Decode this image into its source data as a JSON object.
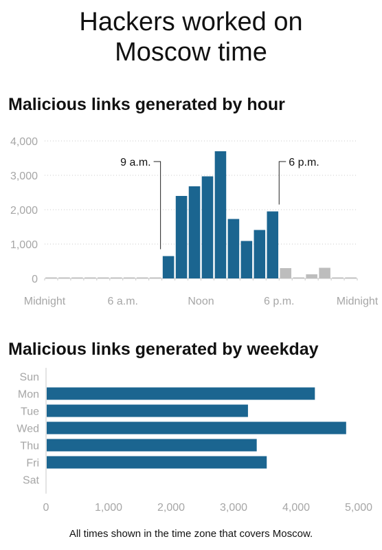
{
  "title": "Hackers worked on Moscow time",
  "footnote": "All times shown in the time zone that covers Moscow.",
  "colors": {
    "bar": "#1b6590",
    "bar_muted": "#bdbdbd",
    "axis_text": "#a6a6a6",
    "grid": "#c8c8c8"
  },
  "chart_data": [
    {
      "type": "bar",
      "title": "Malicious links generated by hour",
      "xlabel": "",
      "ylabel": "",
      "ylim": [
        0,
        4000
      ],
      "y_ticks": [
        0,
        1000,
        2000,
        3000,
        4000
      ],
      "y_tick_labels": [
        "0",
        "1,000",
        "2,000",
        "3,000",
        "4,000"
      ],
      "x_tick_labels": [
        {
          "hour": 0,
          "label": "Midnight"
        },
        {
          "hour": 6,
          "label": "6 a.m."
        },
        {
          "hour": 12,
          "label": "Noon"
        },
        {
          "hour": 18,
          "label": "6 p.m."
        },
        {
          "hour": 24,
          "label": "Midnight"
        }
      ],
      "grid": true,
      "categories": [
        0,
        1,
        2,
        3,
        4,
        5,
        6,
        7,
        8,
        9,
        10,
        11,
        12,
        13,
        14,
        15,
        16,
        17,
        18,
        19,
        20,
        21,
        22,
        23
      ],
      "values": [
        5,
        5,
        5,
        5,
        5,
        5,
        5,
        20,
        5,
        650,
        2400,
        2680,
        2970,
        3700,
        1730,
        1090,
        1410,
        1950,
        300,
        10,
        120,
        310,
        10,
        5
      ],
      "highlight_range": [
        9,
        17
      ],
      "annotations": [
        {
          "label": "9 a.m.",
          "hour": 9
        },
        {
          "label": "6 p.m.",
          "hour": 18
        }
      ]
    },
    {
      "type": "bar",
      "orientation": "horizontal",
      "title": "Malicious links generated by weekday",
      "xlabel": "",
      "ylabel": "",
      "xlim": [
        0,
        5000
      ],
      "x_ticks": [
        0,
        1000,
        2000,
        3000,
        4000,
        5000
      ],
      "x_tick_labels": [
        "0",
        "1,000",
        "2,000",
        "3,000",
        "4,000",
        "5,000"
      ],
      "grid": false,
      "categories": [
        "Sun",
        "Mon",
        "Tue",
        "Wed",
        "Thu",
        "Fri",
        "Sat"
      ],
      "values": [
        0,
        4300,
        3230,
        4800,
        3370,
        3530,
        0
      ]
    }
  ]
}
